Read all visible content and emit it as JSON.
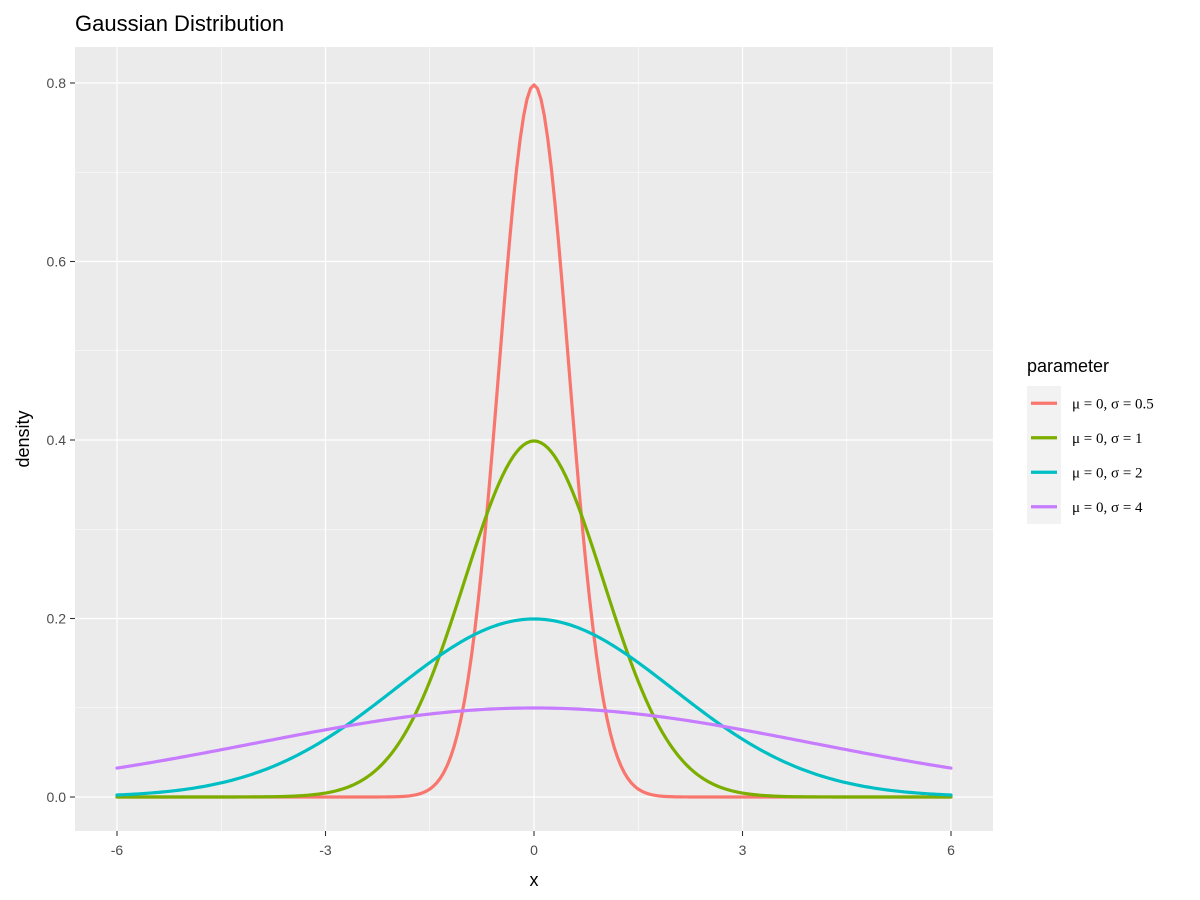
{
  "chart_data": {
    "type": "line",
    "title": "Gaussian Distribution",
    "xlabel": "x",
    "ylabel": "density",
    "xlim": [
      -6,
      6
    ],
    "ylim": [
      0,
      0.8
    ],
    "x_ticks": [
      -6,
      -3,
      0,
      3,
      6
    ],
    "x_tick_labels": [
      "-6",
      "-3",
      "0",
      "3",
      "6"
    ],
    "y_ticks": [
      0.0,
      0.2,
      0.4,
      0.6,
      0.8
    ],
    "y_tick_labels": [
      "0.0",
      "0.2",
      "0.4",
      "0.6",
      "0.8"
    ],
    "grid": true,
    "legend": {
      "title": "parameter",
      "position": "right"
    },
    "background_color": "#ebebeb",
    "series": [
      {
        "name": "μ = 0, σ = 0.5",
        "mu": 0,
        "sigma": 0.5,
        "color": "#f8766d"
      },
      {
        "name": "μ = 0, σ = 1",
        "mu": 0,
        "sigma": 1,
        "color": "#7cae00"
      },
      {
        "name": "μ = 0, σ = 2",
        "mu": 0,
        "sigma": 2,
        "color": "#00bfc4"
      },
      {
        "name": "μ = 0, σ = 4",
        "mu": 0,
        "sigma": 4,
        "color": "#c77cff"
      }
    ]
  }
}
